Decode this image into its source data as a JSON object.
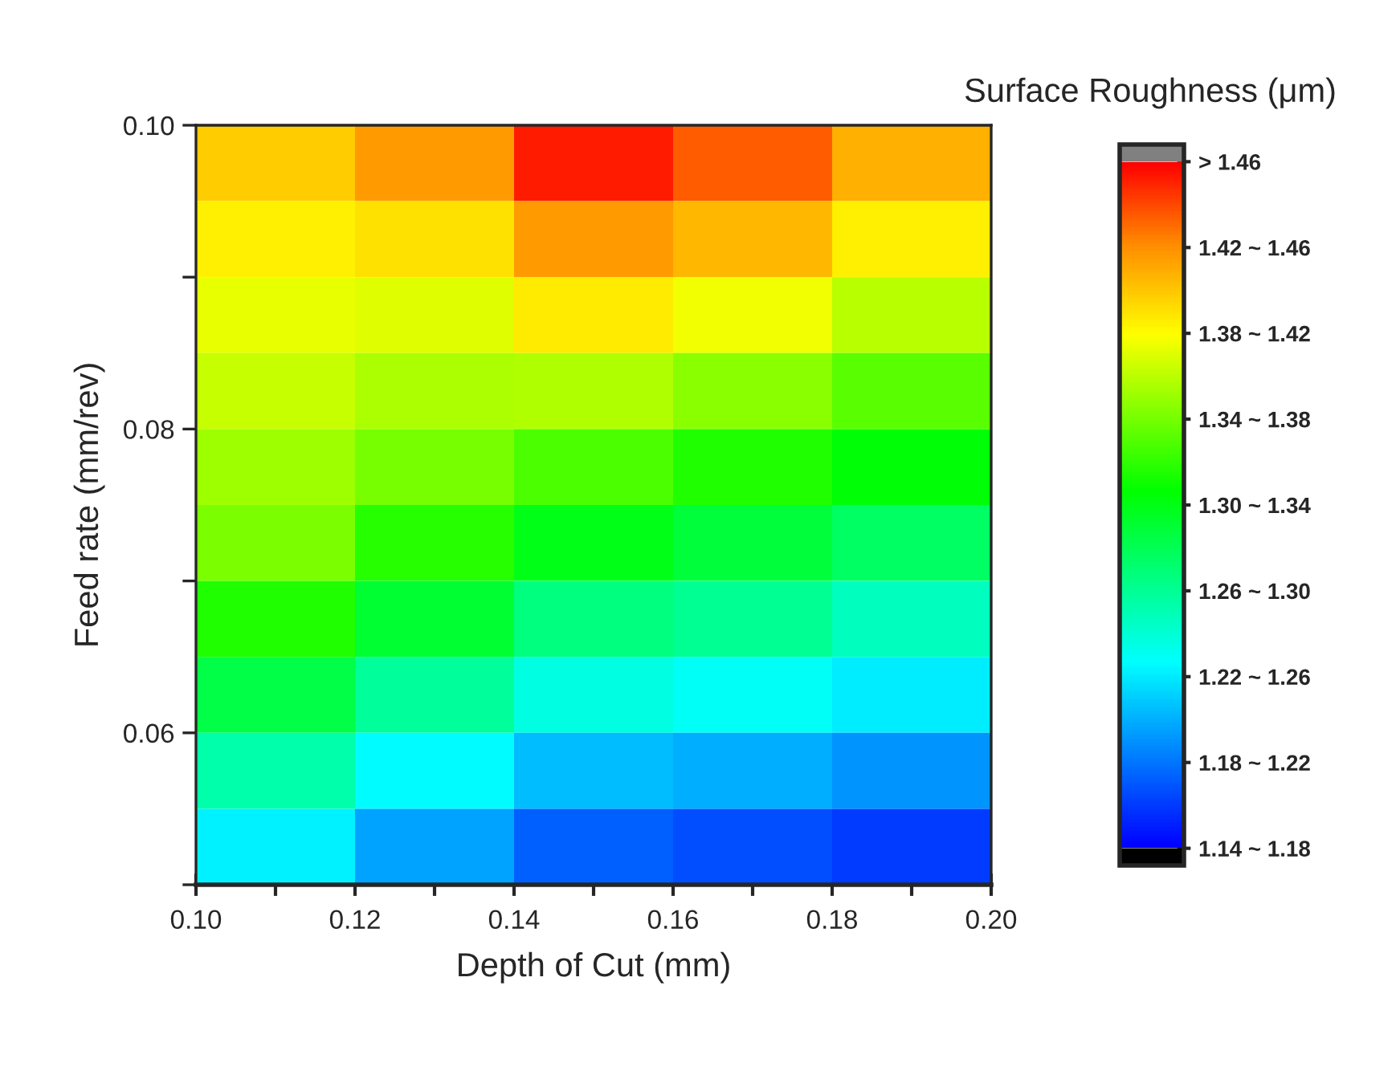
{
  "chart_data": {
    "type": "heatmap",
    "xlabel": "Depth of Cut (mm)",
    "ylabel": "Feed rate (mm/rev)",
    "clabel": "Surface Roughness (μm)",
    "x": [
      0.11,
      0.13,
      0.15,
      0.17,
      0.19
    ],
    "y": [
      0.0975,
      0.0925,
      0.0875,
      0.0825,
      0.0775,
      0.0725,
      0.0675,
      0.0625,
      0.0575,
      0.0525
    ],
    "cells": [
      [
        1.398,
        1.416,
        1.452,
        1.434,
        1.408
      ],
      [
        1.385,
        1.391,
        1.416,
        1.405,
        1.385
      ],
      [
        1.373,
        1.371,
        1.387,
        1.376,
        1.359
      ],
      [
        1.363,
        1.356,
        1.357,
        1.346,
        1.332
      ],
      [
        1.352,
        1.34,
        1.328,
        1.315,
        1.304
      ],
      [
        1.342,
        1.317,
        1.299,
        1.288,
        1.276
      ],
      [
        1.315,
        1.291,
        1.267,
        1.26,
        1.247
      ],
      [
        1.284,
        1.258,
        1.235,
        1.229,
        1.22
      ],
      [
        1.253,
        1.226,
        1.204,
        1.199,
        1.19
      ],
      [
        1.222,
        1.195,
        1.173,
        1.167,
        1.16
      ]
    ],
    "xlim": [
      0.1,
      0.2
    ],
    "xticks": [
      {
        "value": 0.1,
        "label": "0.10"
      },
      {
        "value": 0.11,
        "label": null
      },
      {
        "value": 0.12,
        "label": "0.12"
      },
      {
        "value": 0.13,
        "label": null
      },
      {
        "value": 0.14,
        "label": "0.14"
      },
      {
        "value": 0.15,
        "label": null
      },
      {
        "value": 0.16,
        "label": "0.16"
      },
      {
        "value": 0.17,
        "label": null
      },
      {
        "value": 0.18,
        "label": "0.18"
      },
      {
        "value": 0.19,
        "label": null
      },
      {
        "value": 0.2,
        "label": "0.20"
      }
    ],
    "ylim": [
      0.05,
      0.1
    ],
    "yticks": [
      {
        "value": 0.05,
        "label": null
      },
      {
        "value": 0.06,
        "label": "0.06"
      },
      {
        "value": 0.07,
        "label": null
      },
      {
        "value": 0.08,
        "label": "0.08"
      },
      {
        "value": 0.09,
        "label": null
      },
      {
        "value": 0.1,
        "label": "0.10"
      }
    ],
    "clim": [
      1.14,
      1.46
    ],
    "cticks": [
      {
        "value": 1.14,
        "label": "1.14 ~ 1.18"
      },
      {
        "value": 1.18,
        "label": "1.18 ~ 1.22"
      },
      {
        "value": 1.22,
        "label": "1.22 ~ 1.26"
      },
      {
        "value": 1.26,
        "label": "1.26 ~ 1.30"
      },
      {
        "value": 1.3,
        "label": "1.30 ~ 1.34"
      },
      {
        "value": 1.34,
        "label": "1.34 ~ 1.38"
      },
      {
        "value": 1.38,
        "label": "1.38 ~ 1.42"
      },
      {
        "value": 1.42,
        "label": "1.42 ~ 1.46"
      },
      {
        "value": 1.46,
        "label": "> 1.46"
      }
    ]
  }
}
